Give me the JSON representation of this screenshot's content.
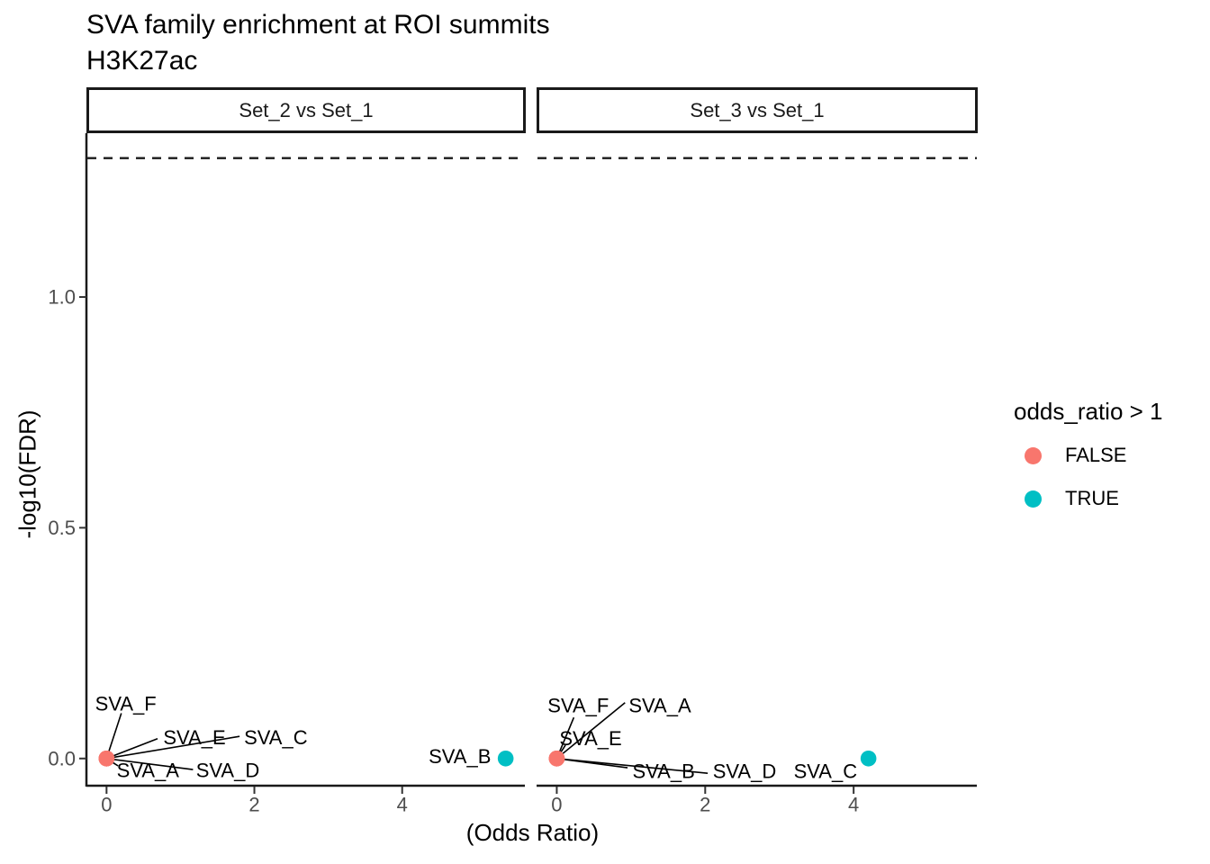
{
  "chart_data": {
    "type": "scatter",
    "title": "SVA family enrichment at ROI summits",
    "subtitle": "H3K27ac",
    "xlabel": "(Odds Ratio)",
    "ylabel": "-log10(FDR)",
    "xlim": [
      -0.26,
      5.66
    ],
    "ylim": [
      -0.057,
      1.355
    ],
    "grid": false,
    "legend_position": "right",
    "x_ticks": [
      {
        "v": 0,
        "label": "0"
      },
      {
        "v": 2,
        "label": "2"
      },
      {
        "v": 4,
        "label": "4"
      }
    ],
    "y_ticks": [
      {
        "v": 0.0,
        "label": "0.0"
      },
      {
        "v": 0.5,
        "label": "0.5"
      },
      {
        "v": 1.0,
        "label": "1.0"
      }
    ],
    "threshold_line": {
      "y": 1.301,
      "style": "dashed",
      "color": "#1a1a1a"
    },
    "legend": {
      "title": "odds_ratio > 1",
      "items": [
        {
          "label": "FALSE",
          "color": "#F8766D"
        },
        {
          "label": "TRUE",
          "color": "#00BFC4"
        }
      ]
    },
    "facets": [
      {
        "label": "Set_2 vs Set_1",
        "anchor": {
          "x": 0,
          "y": 0
        },
        "points": [
          {
            "family": "SVA_A",
            "odds_ratio": 0,
            "neglog10_fdr": 0,
            "odds_gt_1": false
          },
          {
            "family": "SVA_B",
            "odds_ratio": 5.4,
            "neglog10_fdr": 0,
            "odds_gt_1": true
          },
          {
            "family": "SVA_C",
            "odds_ratio": 0,
            "neglog10_fdr": 0,
            "odds_gt_1": false
          },
          {
            "family": "SVA_D",
            "odds_ratio": 0,
            "neglog10_fdr": 0,
            "odds_gt_1": false
          },
          {
            "family": "SVA_E",
            "odds_ratio": 0,
            "neglog10_fdr": 0,
            "odds_gt_1": false
          },
          {
            "family": "SVA_F",
            "odds_ratio": 0,
            "neglog10_fdr": 0,
            "odds_gt_1": false
          }
        ],
        "labels": [
          {
            "text": "SVA_F",
            "x": 0.26,
            "y": 0.119,
            "leader": {
              "x": 0.2,
              "y": 0.098
            }
          },
          {
            "text": "SVA_E",
            "x": 1.19,
            "y": 0.045,
            "leader": {
              "x": 0.69,
              "y": 0.043
            }
          },
          {
            "text": "SVA_C",
            "x": 2.29,
            "y": 0.045,
            "leader": {
              "x": 1.8,
              "y": 0.048
            }
          },
          {
            "text": "SVA_A",
            "x": 0.56,
            "y": -0.026,
            "leader": {
              "x": 0.155,
              "y": -0.016
            }
          },
          {
            "text": "SVA_D",
            "x": 1.64,
            "y": -0.026,
            "leader": {
              "x": 1.17,
              "y": -0.024
            }
          },
          {
            "text": "SVA_B",
            "x": 4.78,
            "y": 0.004,
            "leader": null
          }
        ]
      },
      {
        "label": "Set_3 vs Set_1",
        "anchor": {
          "x": 0,
          "y": 0
        },
        "points": [
          {
            "family": "SVA_A",
            "odds_ratio": 0,
            "neglog10_fdr": 0,
            "odds_gt_1": false
          },
          {
            "family": "SVA_B",
            "odds_ratio": 0,
            "neglog10_fdr": 0,
            "odds_gt_1": false
          },
          {
            "family": "SVA_C",
            "odds_ratio": 4.2,
            "neglog10_fdr": 0,
            "odds_gt_1": true
          },
          {
            "family": "SVA_D",
            "odds_ratio": 0,
            "neglog10_fdr": 0,
            "odds_gt_1": false
          },
          {
            "family": "SVA_E",
            "odds_ratio": 0,
            "neglog10_fdr": 0,
            "odds_gt_1": false
          },
          {
            "family": "SVA_F",
            "odds_ratio": 0,
            "neglog10_fdr": 0,
            "odds_gt_1": false
          }
        ],
        "labels": [
          {
            "text": "SVA_F",
            "x": 0.29,
            "y": 0.115,
            "leader": {
              "x": 0.23,
              "y": 0.089
            }
          },
          {
            "text": "SVA_A",
            "x": 1.39,
            "y": 0.115,
            "leader": {
              "x": 0.92,
              "y": 0.121
            }
          },
          {
            "text": "SVA_E",
            "x": 0.456,
            "y": 0.043,
            "leader": {
              "x": 0.117,
              "y": 0.029
            }
          },
          {
            "text": "SVA_B",
            "x": 1.44,
            "y": -0.028,
            "leader": {
              "x": 0.954,
              "y": -0.02
            }
          },
          {
            "text": "SVA_D",
            "x": 2.53,
            "y": -0.028,
            "leader": {
              "x": 2.034,
              "y": -0.032
            }
          },
          {
            "text": "SVA_C",
            "x": 3.62,
            "y": -0.028,
            "leader": null
          }
        ]
      }
    ]
  }
}
